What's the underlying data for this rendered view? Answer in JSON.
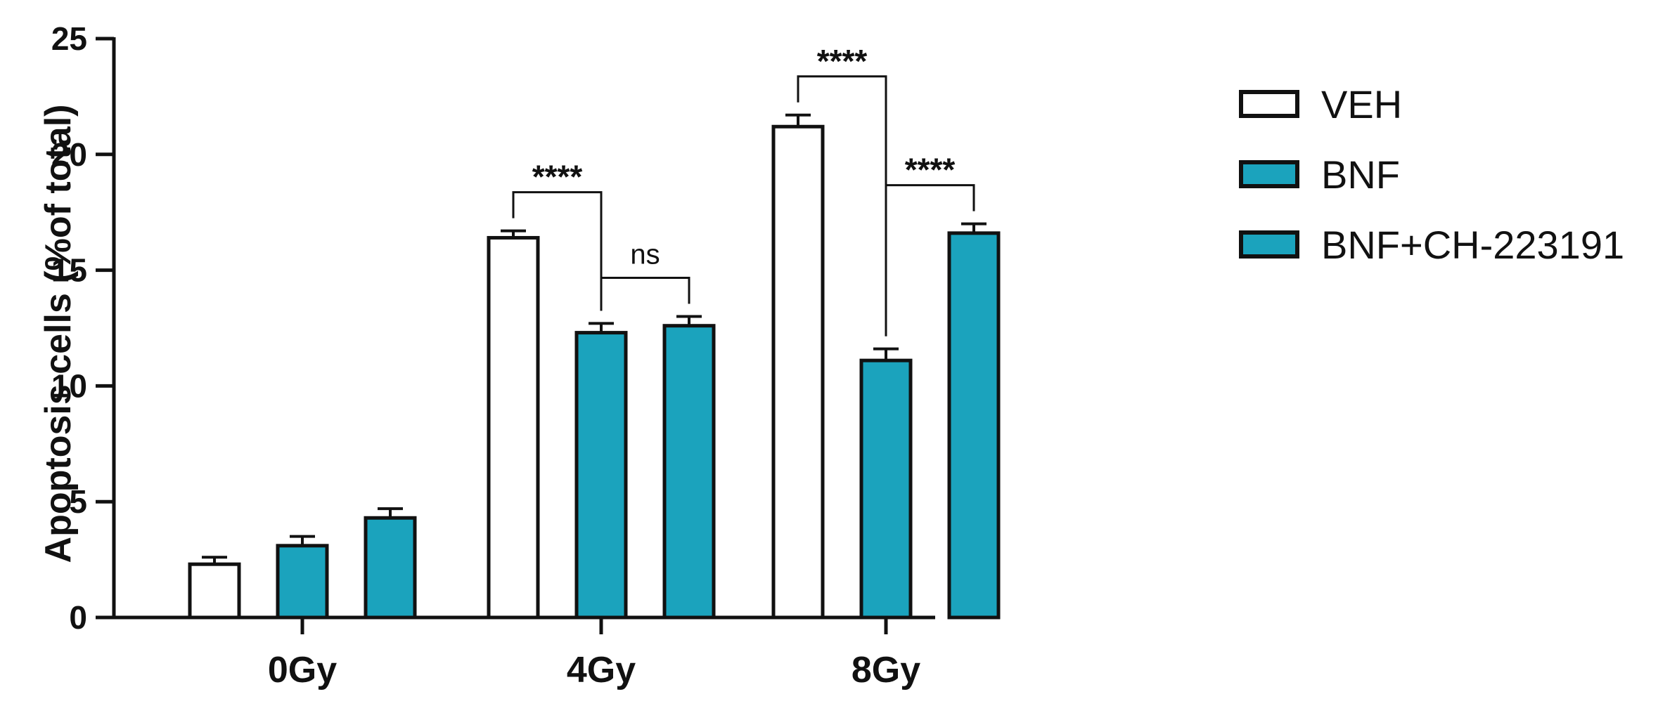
{
  "chart_data": {
    "type": "bar",
    "title": "",
    "xlabel": "",
    "ylabel": "Apoptosis cells (%of total)",
    "ylim": [
      0,
      25
    ],
    "yticks": [
      0,
      5,
      10,
      15,
      20,
      25
    ],
    "categories": [
      "0Gy",
      "4Gy",
      "8Gy"
    ],
    "series": [
      {
        "name": "VEH",
        "values": [
          2.3,
          16.4,
          21.2
        ],
        "errors": [
          0.3,
          0.3,
          0.5
        ],
        "color": "#ffffff"
      },
      {
        "name": "BNF",
        "values": [
          3.1,
          12.3,
          11.1
        ],
        "errors": [
          0.4,
          0.4,
          0.5
        ],
        "color": "#1ba3bd"
      },
      {
        "name": "BNF+CH-223191",
        "values": [
          4.3,
          12.6,
          16.6
        ],
        "errors": [
          0.4,
          0.4,
          0.4
        ],
        "color": "#1ba3bd"
      }
    ],
    "grid": false,
    "legend_position": "right",
    "annotations": [
      {
        "category": "4Gy",
        "from_series": 0,
        "to_series": 1,
        "label": "****"
      },
      {
        "category": "4Gy",
        "from_series": 1,
        "to_series": 2,
        "label": "ns"
      },
      {
        "category": "8Gy",
        "from_series": 0,
        "to_series": 1,
        "label": "****"
      },
      {
        "category": "8Gy",
        "from_series": 1,
        "to_series": 2,
        "label": "****"
      }
    ]
  }
}
